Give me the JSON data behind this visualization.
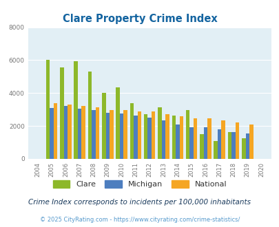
{
  "title": "Clare Property Crime Index",
  "years": [
    2004,
    2005,
    2006,
    2007,
    2008,
    2009,
    2010,
    2011,
    2012,
    2013,
    2014,
    2015,
    2016,
    2017,
    2018,
    2019,
    2020
  ],
  "clare": [
    0,
    6020,
    5550,
    5950,
    5300,
    4000,
    4350,
    3380,
    2700,
    3150,
    2620,
    2950,
    1520,
    1100,
    1620,
    1250,
    0
  ],
  "michigan": [
    0,
    3100,
    3200,
    3070,
    2970,
    2820,
    2750,
    2640,
    2520,
    2320,
    2100,
    1930,
    1920,
    1810,
    1620,
    1560,
    0
  ],
  "national": [
    0,
    3380,
    3310,
    3210,
    3130,
    2980,
    2980,
    2900,
    2900,
    2730,
    2610,
    2470,
    2460,
    2360,
    2210,
    2110,
    0
  ],
  "clare_color": "#8db82a",
  "michigan_color": "#4d7ebf",
  "national_color": "#f5a623",
  "bg_color": "#e2eff5",
  "ylim": [
    0,
    8000
  ],
  "yticks": [
    0,
    2000,
    4000,
    6000,
    8000
  ],
  "subtitle": "Crime Index corresponds to incidents per 100,000 inhabitants",
  "footer": "© 2025 CityRating.com - https://www.cityrating.com/crime-statistics/",
  "title_color": "#1464a0",
  "subtitle_color": "#1a3a5c",
  "footer_color": "#5599cc"
}
